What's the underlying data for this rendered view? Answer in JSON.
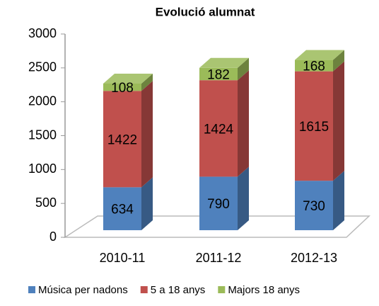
{
  "chart_data": {
    "type": "bar3d_stacked",
    "title": "Evolució alumnat",
    "categories": [
      "2010-11",
      "2011-12",
      "2012-13"
    ],
    "series": [
      {
        "name": "Música per nadons",
        "color": "#4f81bd",
        "values": [
          634,
          790,
          730
        ]
      },
      {
        "name": "5 a 18 anys",
        "color": "#c0504d",
        "values": [
          1422,
          1424,
          1615
        ]
      },
      {
        "name": "Majors 18 anys",
        "color": "#9bbb59",
        "values": [
          108,
          182,
          168
        ]
      }
    ],
    "ylim": [
      0,
      3000
    ],
    "yticks": [
      0,
      500,
      1000,
      1500,
      2000,
      2500,
      3000
    ],
    "legend": "bottom"
  }
}
